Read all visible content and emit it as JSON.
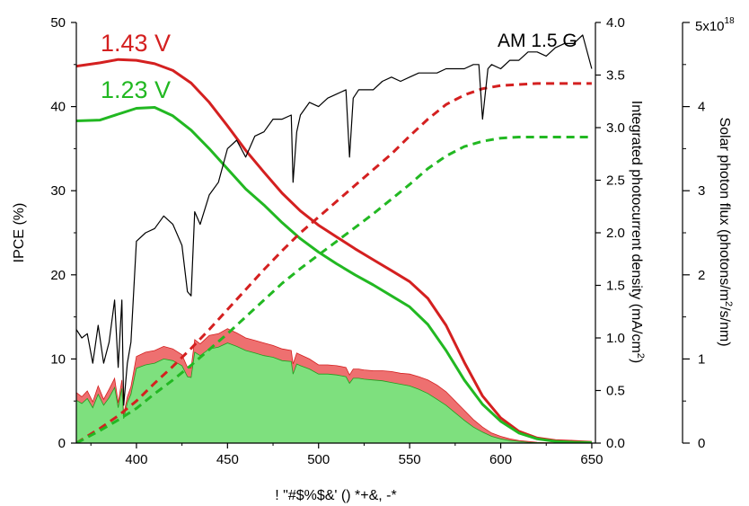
{
  "chart_data": {
    "type": "line",
    "xlabel": "! \"#$%$&' () *+&, -*",
    "ylabel_left": "IPCE (%)",
    "ylabel_right1": "Integrated photocurrent density (mA/cm",
    "ylabel_right1_sup": "2",
    "ylabel_right1_close": ")",
    "ylabel_right2": "Solar photon flux (photons/m",
    "ylabel_right2_sup": "2",
    "ylabel_right2_close": "/s/nm)",
    "xlim": [
      367,
      652
    ],
    "ylim_left": [
      0,
      50
    ],
    "ylim_right1": [
      0,
      4.0
    ],
    "ylim_right2": [
      0,
      5
    ],
    "x_ticks": [
      400,
      450,
      500,
      550,
      600,
      650
    ],
    "y_ticks_left": [
      0,
      10,
      20,
      30,
      40,
      50
    ],
    "y_ticks_right1": [
      "0.0",
      "0.5",
      "1.0",
      "1.5",
      "2.0",
      "2.5",
      "3.0",
      "3.5",
      "4.0"
    ],
    "y_ticks_right2": [
      "0",
      "1",
      "2",
      "3",
      "4"
    ],
    "y_top_right2_base": "5x10",
    "y_top_right2_exp": "18",
    "annotations": {
      "label_143": "1.43 V",
      "label_123": "1.23 V",
      "label_am": "AM 1.5 G"
    },
    "colors": {
      "red": "#d42020",
      "green": "#22b822",
      "red_fill": "#ee7070",
      "green_fill": "#7ee07e",
      "black": "#000000"
    },
    "series": [
      {
        "name": "1.43 V",
        "axis": "left",
        "style": "solid",
        "color": "red",
        "x": [
          367,
          380,
          390,
          400,
          410,
          420,
          430,
          440,
          450,
          460,
          470,
          480,
          490,
          500,
          510,
          520,
          530,
          540,
          550,
          560,
          570,
          580,
          590,
          600,
          610,
          620,
          630,
          640,
          650
        ],
        "y": [
          44.8,
          45.2,
          45.6,
          45.5,
          45.1,
          44.3,
          42.8,
          40.5,
          37.7,
          34.8,
          32.2,
          29.7,
          27.6,
          25.9,
          24.5,
          23.1,
          21.8,
          20.5,
          19.2,
          17.2,
          14.0,
          9.6,
          5.6,
          3.0,
          1.4,
          0.6,
          0.3,
          0.2,
          0.1
        ]
      },
      {
        "name": "1.23 V",
        "axis": "left",
        "style": "solid",
        "color": "green",
        "x": [
          367,
          380,
          390,
          400,
          410,
          420,
          430,
          440,
          450,
          460,
          470,
          480,
          490,
          500,
          510,
          520,
          530,
          540,
          550,
          560,
          570,
          580,
          590,
          600,
          610,
          620,
          630,
          640,
          650
        ],
        "y": [
          38.3,
          38.4,
          39.1,
          39.8,
          39.9,
          38.9,
          37.2,
          35.0,
          32.6,
          30.2,
          28.3,
          26.2,
          24.3,
          22.7,
          21.3,
          20.0,
          18.8,
          17.5,
          16.2,
          14.1,
          11.0,
          7.5,
          4.6,
          2.6,
          1.2,
          0.5,
          0.2,
          0.1,
          0.05
        ]
      },
      {
        "name": "1.43 V integrated",
        "axis": "right1",
        "style": "dashed",
        "color": "red",
        "x": [
          367,
          380,
          390,
          400,
          410,
          420,
          430,
          440,
          450,
          460,
          470,
          480,
          490,
          500,
          510,
          520,
          530,
          540,
          550,
          560,
          570,
          580,
          590,
          600,
          610,
          620,
          630,
          640,
          650
        ],
        "y": [
          0.0,
          0.14,
          0.26,
          0.4,
          0.57,
          0.73,
          0.9,
          1.08,
          1.27,
          1.46,
          1.65,
          1.83,
          2.0,
          2.15,
          2.3,
          2.45,
          2.6,
          2.75,
          2.92,
          3.08,
          3.22,
          3.31,
          3.37,
          3.4,
          3.41,
          3.42,
          3.42,
          3.42,
          3.42
        ]
      },
      {
        "name": "1.23 V integrated",
        "axis": "right1",
        "style": "dashed",
        "color": "green",
        "x": [
          367,
          380,
          390,
          400,
          410,
          420,
          430,
          440,
          450,
          460,
          470,
          480,
          490,
          500,
          510,
          520,
          530,
          540,
          550,
          560,
          570,
          580,
          590,
          600,
          610,
          620,
          630,
          640,
          650
        ],
        "y": [
          0.0,
          0.12,
          0.22,
          0.33,
          0.47,
          0.6,
          0.74,
          0.89,
          1.04,
          1.2,
          1.36,
          1.52,
          1.66,
          1.79,
          1.92,
          2.05,
          2.18,
          2.32,
          2.46,
          2.61,
          2.73,
          2.82,
          2.87,
          2.9,
          2.91,
          2.91,
          2.91,
          2.91,
          2.91
        ]
      },
      {
        "name": "AM 1.5 G",
        "axis": "right2",
        "style": "solid",
        "color": "black",
        "x": [
          367,
          370,
          373,
          376,
          379,
          382,
          385,
          388,
          390,
          392,
          393,
          395,
          397,
          400,
          405,
          410,
          415,
          420,
          425,
          428,
          430,
          432,
          435,
          440,
          445,
          450,
          455,
          460,
          465,
          470,
          475,
          480,
          485,
          486,
          488,
          490,
          495,
          500,
          505,
          510,
          515,
          517,
          519,
          522,
          525,
          530,
          535,
          540,
          545,
          550,
          555,
          560,
          565,
          570,
          575,
          580,
          585,
          588,
          590,
          593,
          595,
          600,
          605,
          610,
          615,
          620,
          625,
          630,
          635,
          640,
          645,
          650
        ],
        "y": [
          1.35,
          1.25,
          1.3,
          0.95,
          1.4,
          0.95,
          1.2,
          1.7,
          0.9,
          1.7,
          0.45,
          0.95,
          1.2,
          2.4,
          2.5,
          2.55,
          2.7,
          2.6,
          2.35,
          1.8,
          1.75,
          2.75,
          2.6,
          2.95,
          3.1,
          3.5,
          3.6,
          3.4,
          3.65,
          3.7,
          3.85,
          3.85,
          3.9,
          3.1,
          3.7,
          3.9,
          4.05,
          4.0,
          4.1,
          4.15,
          4.2,
          3.4,
          4.1,
          4.2,
          4.2,
          4.2,
          4.3,
          4.35,
          4.3,
          4.35,
          4.4,
          4.4,
          4.4,
          4.45,
          4.45,
          4.45,
          4.5,
          4.5,
          3.85,
          4.45,
          4.5,
          4.45,
          4.55,
          4.55,
          4.65,
          4.65,
          4.6,
          4.7,
          4.75,
          4.75,
          4.85,
          4.45
        ]
      },
      {
        "name": "1.43 V photocurrent",
        "axis": "left",
        "style": "area",
        "color": "red_fill",
        "x": [
          367,
          370,
          373,
          376,
          379,
          382,
          385,
          388,
          390,
          392,
          393,
          395,
          397,
          400,
          405,
          410,
          415,
          420,
          425,
          428,
          430,
          432,
          435,
          440,
          445,
          450,
          455,
          460,
          465,
          470,
          475,
          480,
          485,
          486,
          488,
          490,
          495,
          500,
          505,
          510,
          515,
          517,
          519,
          522,
          525,
          530,
          535,
          540,
          545,
          550,
          555,
          560,
          565,
          570,
          575,
          580,
          585,
          590,
          595,
          600,
          605,
          610,
          615,
          620,
          625,
          630,
          635,
          640,
          645,
          650
        ],
        "y": [
          6.0,
          5.5,
          6.2,
          4.9,
          6.8,
          5.2,
          6.4,
          7.7,
          4.8,
          7.5,
          3.4,
          5.5,
          6.7,
          10.3,
          10.8,
          11.0,
          11.5,
          11.2,
          10.5,
          9.0,
          8.9,
          12.3,
          11.8,
          12.8,
          13.0,
          13.6,
          13.1,
          12.5,
          12.2,
          11.9,
          11.6,
          11.2,
          11.0,
          9.4,
          10.7,
          10.5,
          10.0,
          9.3,
          9.3,
          9.2,
          9.0,
          8.1,
          8.8,
          8.8,
          8.7,
          8.6,
          8.6,
          8.5,
          8.3,
          8.2,
          7.9,
          7.5,
          6.9,
          6.1,
          5.0,
          3.9,
          2.8,
          1.9,
          1.2,
          0.8,
          0.5,
          0.3,
          0.2,
          0.1,
          0.05,
          0.02,
          0.01,
          0.0,
          0.0,
          0.0
        ]
      },
      {
        "name": "1.23 V photocurrent",
        "axis": "left",
        "style": "area",
        "color": "green_fill",
        "x": [
          367,
          370,
          373,
          376,
          379,
          382,
          385,
          388,
          390,
          392,
          393,
          395,
          397,
          400,
          405,
          410,
          415,
          420,
          425,
          428,
          430,
          432,
          435,
          440,
          445,
          450,
          455,
          460,
          465,
          470,
          475,
          480,
          485,
          486,
          488,
          490,
          495,
          500,
          505,
          510,
          515,
          517,
          519,
          522,
          525,
          530,
          535,
          540,
          545,
          550,
          555,
          560,
          565,
          570,
          575,
          580,
          585,
          590,
          595,
          600,
          605,
          610,
          615,
          620,
          625,
          630,
          635,
          640,
          645,
          650
        ],
        "y": [
          5.1,
          4.7,
          5.3,
          4.2,
          5.8,
          4.5,
          5.4,
          6.6,
          4.2,
          6.5,
          2.9,
          4.8,
          5.8,
          8.9,
          9.3,
          9.5,
          10.0,
          9.8,
          9.2,
          7.9,
          7.8,
          10.8,
          10.4,
          11.2,
          11.4,
          11.9,
          11.5,
          11.0,
          10.7,
          10.4,
          10.2,
          9.8,
          9.7,
          8.2,
          9.4,
          9.2,
          8.8,
          8.2,
          8.2,
          8.1,
          7.9,
          7.1,
          7.7,
          7.7,
          7.6,
          7.5,
          7.4,
          7.2,
          7.0,
          6.8,
          6.4,
          5.9,
          5.2,
          4.5,
          3.6,
          2.7,
          1.9,
          1.3,
          0.8,
          0.5,
          0.3,
          0.2,
          0.1,
          0.05,
          0.02,
          0.01,
          0.0,
          0.0,
          0.0,
          0.0
        ]
      }
    ]
  }
}
